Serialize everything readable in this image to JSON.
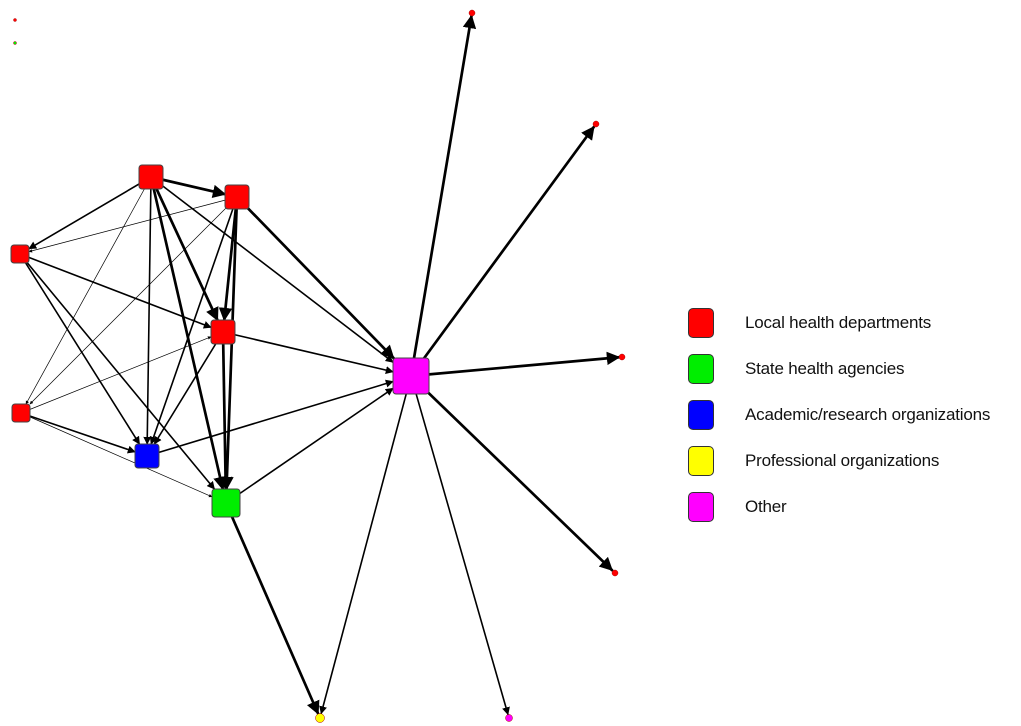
{
  "colors": {
    "local": "#ff0000",
    "state": "#00ee00",
    "academic": "#0000ff",
    "professional": "#ffff00",
    "other": "#ff00ff",
    "edge": "#000000"
  },
  "legend": [
    {
      "label": "Local health departments",
      "color": "#ff0000"
    },
    {
      "label": "State health agencies",
      "color": "#00ee00"
    },
    {
      "label": "Academic/research organizations",
      "color": "#0000ff"
    },
    {
      "label": "Professional organizations",
      "color": "#ffff00"
    },
    {
      "label": "Other",
      "color": "#ff00ff"
    }
  ],
  "network": {
    "nodes": [
      {
        "id": "lhd-1",
        "category": "local"
      },
      {
        "id": "lhd-2",
        "category": "local"
      },
      {
        "id": "lhd-3",
        "category": "local"
      },
      {
        "id": "lhd-4",
        "category": "local"
      },
      {
        "id": "lhd-5",
        "category": "local"
      },
      {
        "id": "academic-1",
        "category": "academic"
      },
      {
        "id": "state-1",
        "category": "state"
      },
      {
        "id": "other-hub",
        "category": "other"
      },
      {
        "id": "lhd-peripheral-1",
        "category": "local"
      },
      {
        "id": "lhd-peripheral-2",
        "category": "local"
      },
      {
        "id": "lhd-peripheral-3",
        "category": "local"
      },
      {
        "id": "lhd-peripheral-4",
        "category": "local"
      },
      {
        "id": "professional-1",
        "category": "professional"
      },
      {
        "id": "other-peripheral-1",
        "category": "other"
      },
      {
        "id": "isolate-1",
        "category": "local"
      },
      {
        "id": "isolate-2",
        "category": "state"
      }
    ],
    "edges": [
      {
        "source": "lhd-1",
        "target": "lhd-2",
        "weight": "thick"
      },
      {
        "source": "lhd-1",
        "target": "lhd-3",
        "weight": "medium"
      },
      {
        "source": "lhd-1",
        "target": "lhd-4",
        "weight": "thin"
      },
      {
        "source": "lhd-1",
        "target": "lhd-5",
        "weight": "thick"
      },
      {
        "source": "lhd-1",
        "target": "academic-1",
        "weight": "medium"
      },
      {
        "source": "lhd-1",
        "target": "state-1",
        "weight": "thick"
      },
      {
        "source": "lhd-1",
        "target": "other-hub",
        "weight": "medium"
      },
      {
        "source": "lhd-2",
        "target": "lhd-3",
        "weight": "thin"
      },
      {
        "source": "lhd-2",
        "target": "lhd-4",
        "weight": "thin"
      },
      {
        "source": "lhd-2",
        "target": "lhd-5",
        "weight": "thick"
      },
      {
        "source": "lhd-2",
        "target": "academic-1",
        "weight": "medium"
      },
      {
        "source": "lhd-2",
        "target": "state-1",
        "weight": "thick"
      },
      {
        "source": "lhd-2",
        "target": "other-hub",
        "weight": "thick"
      },
      {
        "source": "lhd-3",
        "target": "lhd-5",
        "weight": "medium"
      },
      {
        "source": "lhd-3",
        "target": "academic-1",
        "weight": "medium"
      },
      {
        "source": "lhd-3",
        "target": "state-1",
        "weight": "medium"
      },
      {
        "source": "lhd-4",
        "target": "lhd-5",
        "weight": "thin"
      },
      {
        "source": "lhd-4",
        "target": "academic-1",
        "weight": "medium"
      },
      {
        "source": "lhd-4",
        "target": "state-1",
        "weight": "thin"
      },
      {
        "source": "lhd-5",
        "target": "academic-1",
        "weight": "medium"
      },
      {
        "source": "lhd-5",
        "target": "state-1",
        "weight": "thick"
      },
      {
        "source": "lhd-5",
        "target": "other-hub",
        "weight": "medium"
      },
      {
        "source": "academic-1",
        "target": "other-hub",
        "weight": "medium"
      },
      {
        "source": "state-1",
        "target": "other-hub",
        "weight": "medium"
      },
      {
        "source": "state-1",
        "target": "professional-1",
        "weight": "thick"
      },
      {
        "source": "other-hub",
        "target": "lhd-peripheral-1",
        "weight": "thick"
      },
      {
        "source": "other-hub",
        "target": "lhd-peripheral-2",
        "weight": "thick"
      },
      {
        "source": "other-hub",
        "target": "lhd-peripheral-3",
        "weight": "thick"
      },
      {
        "source": "other-hub",
        "target": "lhd-peripheral-4",
        "weight": "thick"
      },
      {
        "source": "other-hub",
        "target": "professional-1",
        "weight": "medium"
      },
      {
        "source": "other-hub",
        "target": "other-peripheral-1",
        "weight": "medium"
      }
    ]
  }
}
